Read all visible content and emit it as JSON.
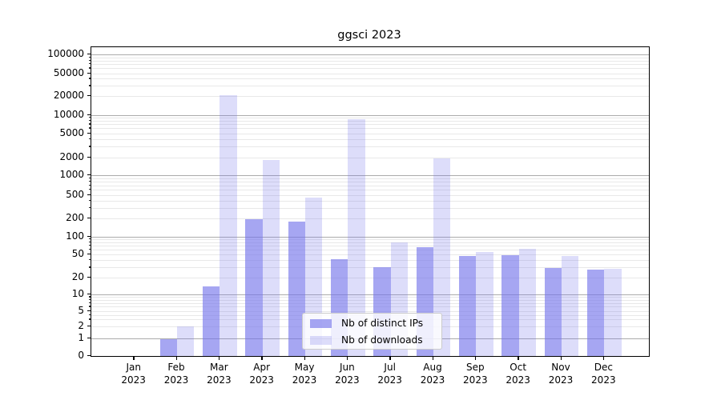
{
  "title": "ggsci 2023",
  "chart_data": {
    "type": "bar",
    "title": "ggsci 2023",
    "xlabel": "",
    "ylabel": "",
    "yscale": "symlog",
    "ylim": [
      0,
      135000
    ],
    "grid": true,
    "minor_grid": true,
    "legend_position": "lower-center",
    "categories": [
      "Jan 2023",
      "Feb 2023",
      "Mar 2023",
      "Apr 2023",
      "May 2023",
      "Jun 2023",
      "Jul 2023",
      "Aug 2023",
      "Sep 2023",
      "Oct 2023",
      "Nov 2023",
      "Dec 2023"
    ],
    "series": [
      {
        "name": "Nb of distinct IPs",
        "fill": "rgba(114,114,235,0.63)",
        "values": [
          0,
          1,
          14,
          195,
          180,
          42,
          31,
          66,
          48,
          49,
          30,
          28
        ]
      },
      {
        "name": "Nb of downloads",
        "fill": "rgba(114,114,235,0.24)",
        "values": [
          0,
          2,
          21000,
          1800,
          460,
          8650,
          80,
          1950,
          55,
          63,
          48,
          29
        ]
      }
    ],
    "y_ticks": [
      {
        "label": "100000",
        "value": 100000
      },
      {
        "label": "50000",
        "value": 50000
      },
      {
        "label": "20000",
        "value": 20000
      },
      {
        "label": "10000",
        "value": 10000
      },
      {
        "label": "5000",
        "value": 5000
      },
      {
        "label": "2000",
        "value": 2000
      },
      {
        "label": "1000",
        "value": 1000
      },
      {
        "label": "500",
        "value": 500
      },
      {
        "label": "200",
        "value": 200
      },
      {
        "label": "100",
        "value": 100
      },
      {
        "label": "50",
        "value": 50
      },
      {
        "label": "20",
        "value": 20
      },
      {
        "label": "10",
        "value": 10
      },
      {
        "label": "5",
        "value": 5
      },
      {
        "label": "2",
        "value": 2
      },
      {
        "label": "1",
        "value": 1
      },
      {
        "label": "0",
        "value": 0
      }
    ],
    "x_tick_labels": [
      {
        "month": "Jan",
        "year": "2023"
      },
      {
        "month": "Feb",
        "year": "2023"
      },
      {
        "month": "Mar",
        "year": "2023"
      },
      {
        "month": "Apr",
        "year": "2023"
      },
      {
        "month": "May",
        "year": "2023"
      },
      {
        "month": "Jun",
        "year": "2023"
      },
      {
        "month": "Jul",
        "year": "2023"
      },
      {
        "month": "Aug",
        "year": "2023"
      },
      {
        "month": "Sep",
        "year": "2023"
      },
      {
        "month": "Oct",
        "year": "2023"
      },
      {
        "month": "Nov",
        "year": "2023"
      },
      {
        "month": "Dec",
        "year": "2023"
      }
    ]
  },
  "legend": {
    "items": [
      {
        "label": "Nb of distinct IPs",
        "fill": "rgba(114,114,235,0.63)"
      },
      {
        "label": "Nb of downloads",
        "fill": "rgba(114,114,235,0.24)"
      }
    ]
  },
  "colors": {
    "bar_base": "#7272eb",
    "grid_major": "#ababab",
    "grid_minor": "#e8e8e8",
    "axis": "#000000",
    "legend_border": "#cccccc"
  }
}
